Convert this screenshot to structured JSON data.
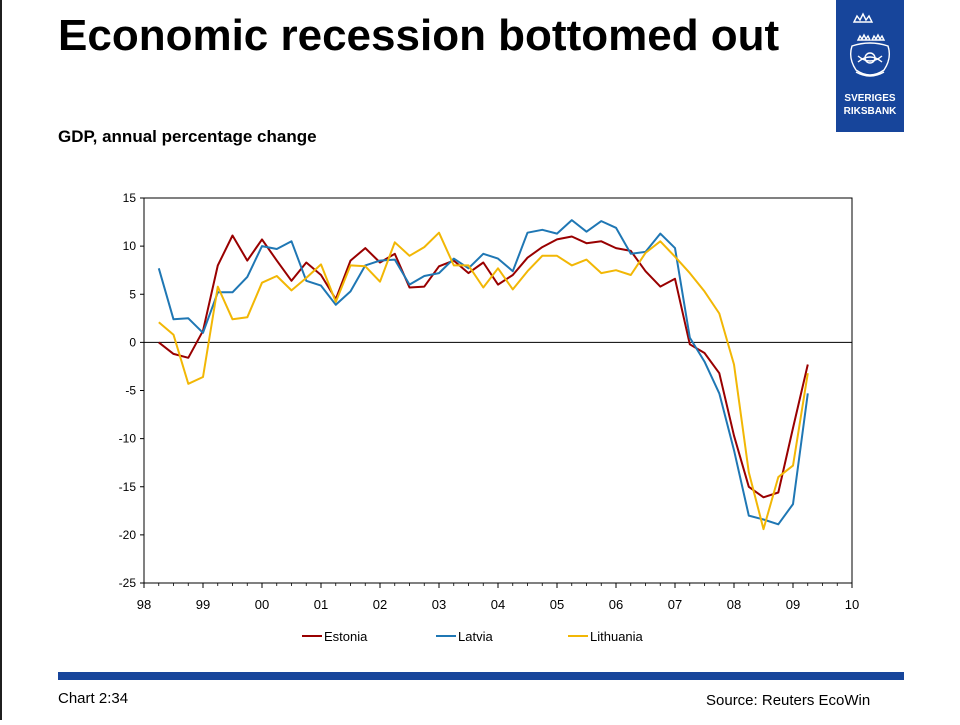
{
  "header": {
    "title": "Economic recession bottomed out",
    "subtitle": "GDP, annual percentage change"
  },
  "logo": {
    "line1": "SVERIGES",
    "line2": "RIKSBANK",
    "color": "#17459b"
  },
  "footer": {
    "chart_number": "Chart 2:34",
    "source": "Source: Reuters EcoWin",
    "bar_color": "#17459b"
  },
  "chart_data": {
    "type": "line",
    "title": "",
    "xlabel": "",
    "ylabel": "",
    "ylim": [
      -25,
      15
    ],
    "xlim": [
      1998,
      2010
    ],
    "yticks": [
      15,
      10,
      5,
      0,
      -5,
      -10,
      -15,
      -20,
      -25
    ],
    "ytick_labels": [
      "15",
      "10",
      "5",
      "0",
      "-5",
      "-10",
      "-15",
      "-20",
      "-25"
    ],
    "xticks": [
      1998,
      1999,
      2000,
      2001,
      2002,
      2003,
      2004,
      2005,
      2006,
      2007,
      2008,
      2009,
      2010
    ],
    "xtick_labels": [
      "98",
      "99",
      "00",
      "01",
      "02",
      "03",
      "04",
      "05",
      "06",
      "07",
      "08",
      "09",
      "10"
    ],
    "grid": false,
    "legend_position": "bottom",
    "series": [
      {
        "name": "Estonia",
        "color": "#990000",
        "x": [
          1998.25,
          1998.5,
          1998.75,
          1999.0,
          1999.25,
          1999.5,
          1999.75,
          2000.0,
          2000.25,
          2000.5,
          2000.75,
          2001.0,
          2001.25,
          2001.5,
          2001.75,
          2002.0,
          2002.25,
          2002.5,
          2002.75,
          2003.0,
          2003.25,
          2003.5,
          2003.75,
          2004.0,
          2004.25,
          2004.5,
          2004.75,
          2005.0,
          2005.25,
          2005.5,
          2005.75,
          2006.0,
          2006.25,
          2006.5,
          2006.75,
          2007.0,
          2007.25,
          2007.5,
          2007.75,
          2008.0,
          2008.25,
          2008.5,
          2008.75,
          2009.0,
          2009.25
        ],
        "values": [
          0.0,
          -1.2,
          -1.6,
          1.2,
          8.0,
          11.1,
          8.5,
          10.7,
          8.5,
          6.4,
          8.3,
          7.0,
          4.5,
          8.5,
          9.8,
          8.3,
          9.2,
          5.7,
          5.8,
          7.9,
          8.5,
          7.2,
          8.3,
          6.0,
          7.0,
          8.8,
          9.9,
          10.7,
          11.0,
          10.3,
          10.5,
          9.8,
          9.5,
          7.4,
          5.8,
          6.6,
          -0.2,
          -1.1,
          -3.2,
          -9.7,
          -15.0,
          -16.1,
          -15.6,
          -8.9,
          -2.3
        ]
      },
      {
        "name": "Latvia",
        "color": "#1f77b4",
        "x": [
          1998.25,
          1998.5,
          1998.75,
          1999.0,
          1999.25,
          1999.5,
          1999.75,
          2000.0,
          2000.25,
          2000.5,
          2000.75,
          2001.0,
          2001.25,
          2001.5,
          2001.75,
          2002.0,
          2002.25,
          2002.5,
          2002.75,
          2003.0,
          2003.25,
          2003.5,
          2003.75,
          2004.0,
          2004.25,
          2004.5,
          2004.75,
          2005.0,
          2005.25,
          2005.5,
          2005.75,
          2006.0,
          2006.25,
          2006.5,
          2006.75,
          2007.0,
          2007.25,
          2007.5,
          2007.75,
          2008.0,
          2008.25,
          2008.5,
          2008.75,
          2009.0,
          2009.25
        ],
        "values": [
          7.7,
          2.4,
          2.5,
          1.0,
          5.2,
          5.2,
          6.8,
          10.0,
          9.7,
          10.5,
          6.4,
          5.9,
          3.9,
          5.3,
          8.0,
          8.5,
          8.6,
          6.0,
          6.9,
          7.2,
          8.7,
          7.7,
          9.2,
          8.7,
          7.4,
          11.4,
          11.7,
          11.3,
          12.7,
          11.5,
          12.6,
          11.9,
          9.2,
          9.4,
          11.3,
          9.8,
          0.5,
          -2.0,
          -5.3,
          -11.2,
          -18.0,
          -18.4,
          -18.9,
          -16.8,
          -5.3
        ]
      },
      {
        "name": "Lithuania",
        "color": "#f2b705",
        "x": [
          1998.25,
          1998.5,
          1998.75,
          1999.0,
          1999.25,
          1999.5,
          1999.75,
          2000.0,
          2000.25,
          2000.5,
          2000.75,
          2001.0,
          2001.25,
          2001.5,
          2001.75,
          2002.0,
          2002.25,
          2002.5,
          2002.75,
          2003.0,
          2003.25,
          2003.5,
          2003.75,
          2004.0,
          2004.25,
          2004.5,
          2004.75,
          2005.0,
          2005.25,
          2005.5,
          2005.75,
          2006.0,
          2006.25,
          2006.5,
          2006.75,
          2007.0,
          2007.25,
          2007.5,
          2007.75,
          2008.0,
          2008.25,
          2008.5,
          2008.75,
          2009.0,
          2009.25
        ],
        "values": [
          2.1,
          0.8,
          -4.3,
          -3.6,
          5.8,
          2.4,
          2.6,
          6.2,
          6.9,
          5.4,
          6.7,
          8.1,
          4.2,
          8.0,
          7.9,
          6.3,
          10.4,
          9.0,
          9.9,
          11.4,
          8.0,
          8.0,
          5.7,
          7.7,
          5.5,
          7.4,
          9.0,
          9.0,
          8.0,
          8.6,
          7.2,
          7.5,
          7.0,
          9.3,
          10.5,
          8.9,
          7.2,
          5.3,
          3.0,
          -2.3,
          -13.5,
          -19.4,
          -14.0,
          -12.8,
          -3.2
        ]
      }
    ]
  }
}
